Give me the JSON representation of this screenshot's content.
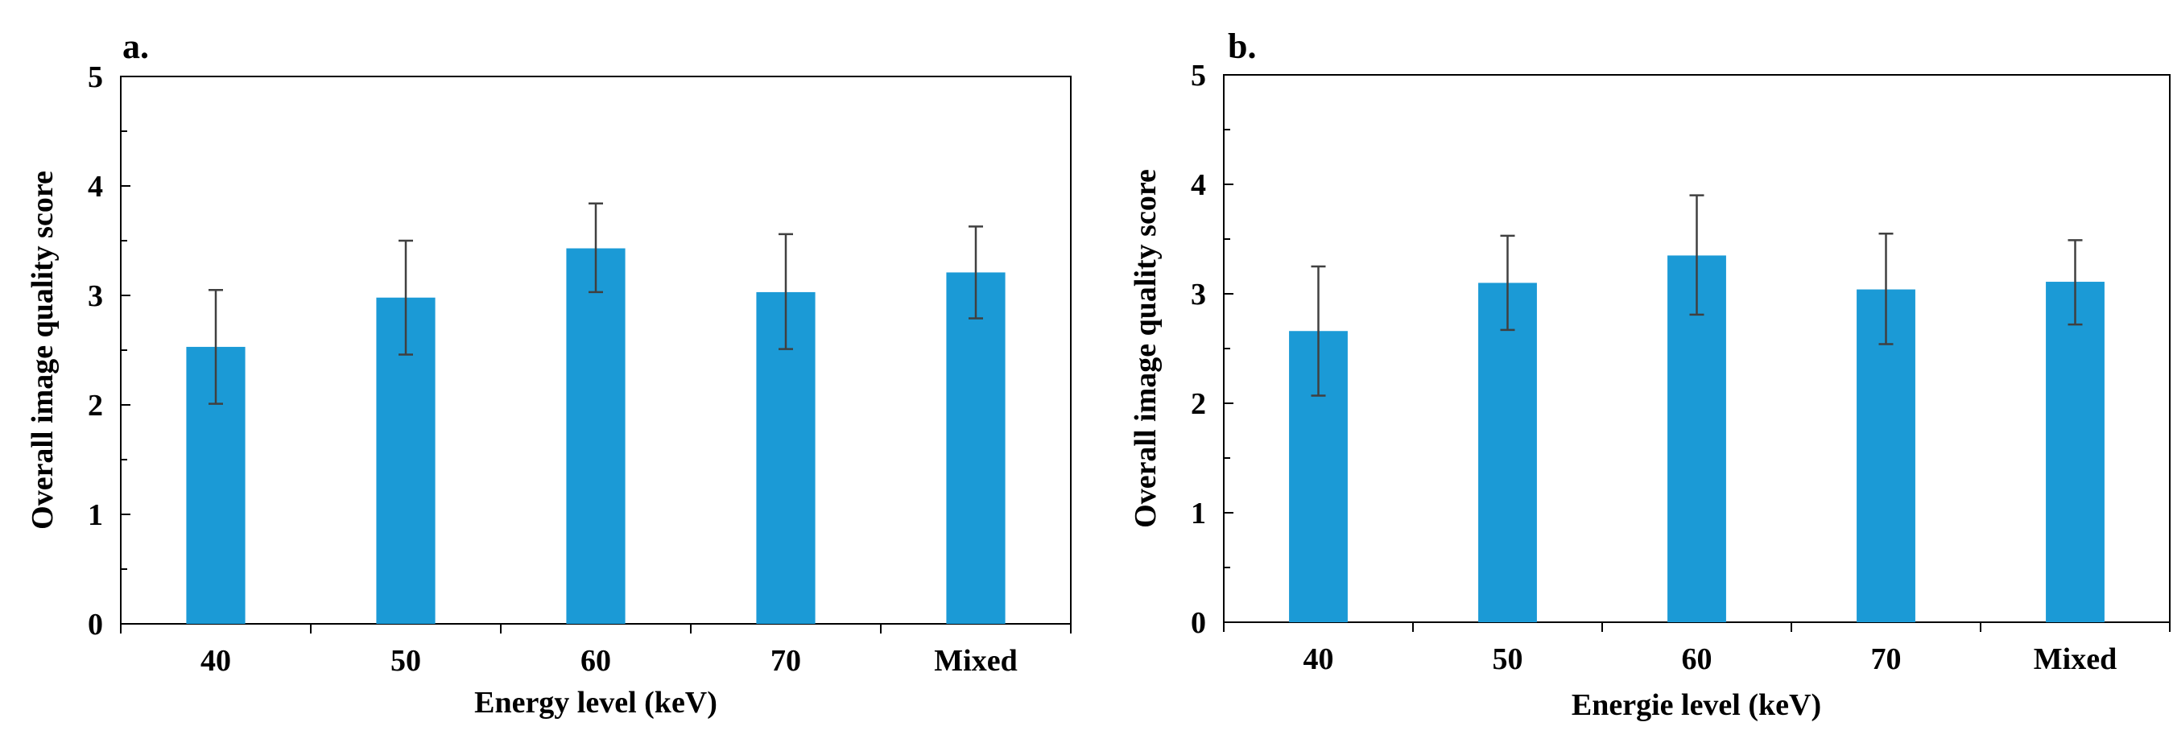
{
  "colors": {
    "bar": "#1b9ad6",
    "error_bar": "#404040",
    "axis": "#000000"
  },
  "chart_data": [
    {
      "type": "bar",
      "panel_label": "a.",
      "title": "",
      "categories": [
        "40",
        "50",
        "60",
        "70",
        "Mixed"
      ],
      "values": [
        2.53,
        2.98,
        3.43,
        3.03,
        3.21
      ],
      "error_low": [
        2.01,
        2.46,
        3.03,
        2.51,
        2.79
      ],
      "error_high": [
        3.05,
        3.5,
        3.84,
        3.56,
        3.63
      ],
      "xlabel": "Energy level (keV)",
      "ylabel": "Overall image quality score",
      "ylim": [
        0,
        5
      ],
      "yticks": [
        "0",
        "1",
        "2",
        "3",
        "4",
        "5"
      ],
      "grid": false,
      "legend": "none"
    },
    {
      "type": "bar",
      "panel_label": "b.",
      "title": "",
      "categories": [
        "40",
        "50",
        "60",
        "70",
        "Mixed"
      ],
      "values": [
        2.66,
        3.1,
        3.35,
        3.04,
        3.11
      ],
      "error_low": [
        2.07,
        2.67,
        2.81,
        2.54,
        2.72
      ],
      "error_high": [
        3.25,
        3.53,
        3.9,
        3.55,
        3.49
      ],
      "xlabel": "Energie level (keV)",
      "ylabel": "Overall image quality score",
      "ylim": [
        0,
        5
      ],
      "yticks": [
        "0",
        "1",
        "2",
        "3",
        "4",
        "5"
      ],
      "grid": false,
      "legend": "none"
    }
  ]
}
